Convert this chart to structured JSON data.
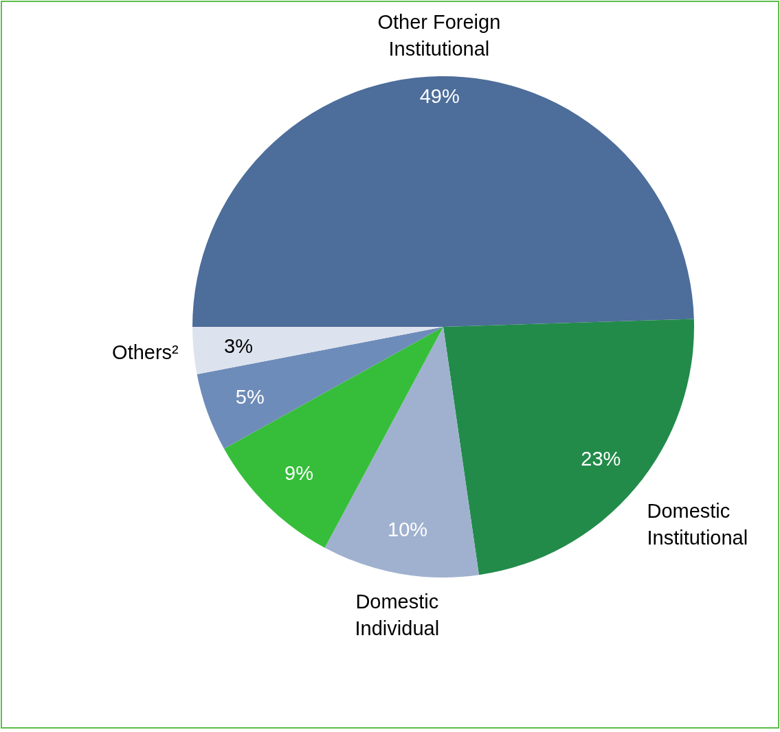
{
  "chart_data": {
    "type": "pie",
    "categories": [
      "Other Foreign Institutional",
      "Domestic Institutional",
      "Domestic Individual",
      null,
      null,
      "Others²"
    ],
    "values": [
      49,
      23,
      10,
      9,
      5,
      3
    ],
    "colors": [
      "#4d6d9a",
      "#228b4a",
      "#9fb1cf",
      "#36be3a",
      "#6e8cb9",
      "#dde3ee"
    ],
    "value_labels": [
      "49%",
      "23%",
      "10%",
      "9%",
      "5%",
      "3%"
    ]
  }
}
